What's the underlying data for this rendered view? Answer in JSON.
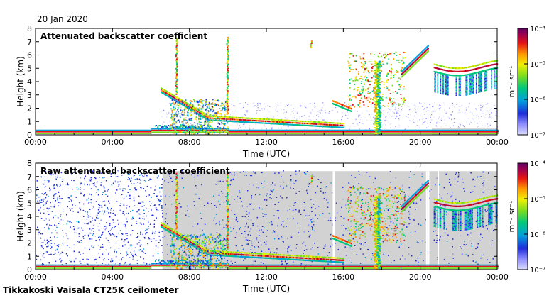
{
  "date": "20 Jan 2020",
  "footer": "Tikkakoski Vaisala CT25K ceilometer",
  "chart_data": [
    {
      "type": "heatmap",
      "title": "Attenuated backscatter coefficient",
      "xlabel": "Time (UTC)",
      "ylabel": "Height (km)",
      "x_ticks": [
        "00:00",
        "04:00",
        "08:00",
        "12:00",
        "16:00",
        "20:00",
        "00:00"
      ],
      "y_ticks": [
        0,
        1,
        2,
        3,
        4,
        5,
        6,
        7,
        8
      ],
      "xlim_hours": [
        0,
        24
      ],
      "ylim": [
        0,
        8
      ],
      "colorbar": {
        "label": "m⁻¹ sr⁻¹",
        "scale": "log",
        "range": [
          1e-07,
          0.0001
        ],
        "tick_labels": [
          "10⁻⁴",
          "10⁻⁵",
          "10⁻⁶",
          "10⁻⁷"
        ]
      },
      "features": [
        {
          "name": "boundary layer",
          "hours": [
            0,
            24
          ],
          "height_km": [
            0.05,
            0.3
          ]
        },
        {
          "name": "descending cloud layer",
          "hours": [
            6.5,
            16
          ],
          "height_km": [
            3.3,
            0.7
          ]
        },
        {
          "name": "precipitation shaft",
          "hours": [
            17.6,
            18.0
          ],
          "height_km": [
            0,
            5.5
          ]
        },
        {
          "name": "elevated cloud",
          "hours": [
            20.7,
            24
          ],
          "height_km": [
            4.5,
            5.3
          ]
        }
      ]
    },
    {
      "type": "heatmap",
      "title": "Raw attenuated backscatter coefficient",
      "xlabel": "Time (UTC)",
      "ylabel": "Height (km)",
      "x_ticks": [
        "00:00",
        "04:00",
        "08:00",
        "12:00",
        "16:00",
        "20:00",
        "00:00"
      ],
      "y_ticks": [
        0,
        1,
        2,
        3,
        4,
        5,
        6,
        7,
        8
      ],
      "xlim_hours": [
        0,
        24
      ],
      "ylim": [
        0,
        8
      ],
      "colorbar": {
        "label": "m⁻¹ sr⁻¹",
        "scale": "log",
        "range": [
          1e-07,
          0.0001
        ],
        "tick_labels": [
          "10⁻⁴",
          "10⁻⁵",
          "10⁻⁶",
          "10⁻⁷"
        ]
      },
      "features": [
        {
          "name": "noise field",
          "hours": [
            0,
            24
          ],
          "height_km": [
            0,
            7.4
          ]
        },
        {
          "name": "boundary layer",
          "hours": [
            0,
            24
          ],
          "height_km": [
            0.05,
            0.3
          ]
        },
        {
          "name": "descending cloud layer",
          "hours": [
            6.5,
            16
          ],
          "height_km": [
            3.3,
            0.7
          ]
        },
        {
          "name": "elevated cloud",
          "hours": [
            20.7,
            24
          ],
          "height_km": [
            4.5,
            5.3
          ]
        }
      ]
    }
  ],
  "colors": {
    "colormap": [
      "#dcdcff",
      "#8c8cff",
      "#1e2ddc",
      "#00a0dc",
      "#00c87a",
      "#78dc1e",
      "#f0f000",
      "#ff9600",
      "#e61414",
      "#a00050",
      "#640064"
    ],
    "noise_gray": "#d2d2d2",
    "frame": "#000000",
    "background": "#ffffff"
  }
}
